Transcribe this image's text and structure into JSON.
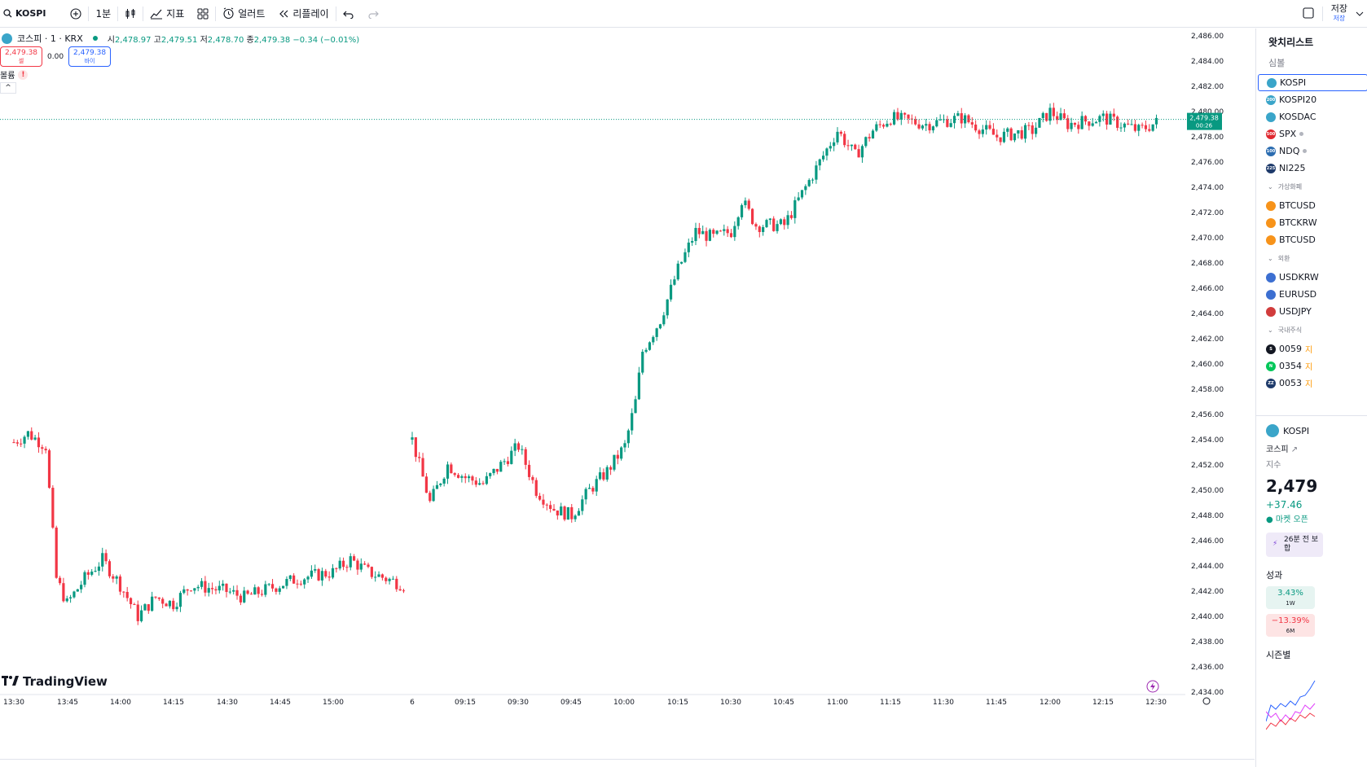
{
  "toolbar": {
    "symbol": "KOSPI",
    "interval": "1분",
    "indicators_label": "지표",
    "alert_label": "얼러트",
    "replay_label": "리플레이",
    "save_label": "저장",
    "save_sub": "저장"
  },
  "legend": {
    "title": "코스피 · 1 · KRX",
    "o_label": "시",
    "o": "2,478.97",
    "h_label": "고",
    "h": "2,479.51",
    "l_label": "저",
    "l": "2,478.70",
    "c_label": "종",
    "c": "2,479.38",
    "change": "−0.34 (−0.01%)"
  },
  "trade": {
    "sell_price": "2,479.38",
    "sell_label": "셀",
    "spread": "0.00",
    "buy_price": "2,479.38",
    "buy_label": "바이"
  },
  "status": {
    "label": "볼륨",
    "warn": "!"
  },
  "collapse": "^",
  "logo": "TradingView",
  "price_axis": {
    "ticks": [
      "2,486.00",
      "2,484.00",
      "2,482.00",
      "2,480.00",
      "2,478.00",
      "2,476.00",
      "2,474.00",
      "2,472.00",
      "2,470.00",
      "2,468.00",
      "2,466.00",
      "2,464.00",
      "2,462.00",
      "2,460.00",
      "2,458.00",
      "2,456.00",
      "2,454.00",
      "2,452.00",
      "2,450.00",
      "2,448.00",
      "2,446.00",
      "2,444.00",
      "2,442.00",
      "2,440.00",
      "2,438.00",
      "2,436.00",
      "2,434.00"
    ],
    "last_price": "2,479.38",
    "countdown": "00:26"
  },
  "time_axis": {
    "ticks": [
      "13:30",
      "13:45",
      "14:00",
      "14:15",
      "14:30",
      "14:45",
      "15:00",
      "6",
      "09:15",
      "09:30",
      "09:45",
      "10:00",
      "10:15",
      "10:30",
      "10:45",
      "11:00",
      "11:15",
      "11:30",
      "11:45",
      "12:00",
      "12:15",
      "12:30"
    ]
  },
  "chart_data": {
    "type": "candlestick",
    "ylim": [
      2434,
      2487
    ],
    "colors": {
      "up": "#089981",
      "down": "#f23645",
      "last_price_line": "#089981"
    },
    "segments": [
      {
        "session": "previous",
        "from": "13:30",
        "to": "15:30",
        "price_path": [
          [
            2453.8,
            "13:30"
          ],
          [
            2454.5,
            "13:34"
          ],
          [
            2453.5,
            "13:39"
          ],
          [
            2450.0,
            "13:40"
          ],
          [
            2443.0,
            "13:42"
          ],
          [
            2441.0,
            "13:45"
          ],
          [
            2443.0,
            "13:50"
          ],
          [
            2444.5,
            "13:55"
          ],
          [
            2442.5,
            "14:00"
          ],
          [
            2440.0,
            "14:05"
          ],
          [
            2441.5,
            "14:10"
          ],
          [
            2441.0,
            "14:15"
          ],
          [
            2442.5,
            "14:20"
          ],
          [
            2442.0,
            "14:30"
          ],
          [
            2441.5,
            "14:35"
          ],
          [
            2442.0,
            "14:40"
          ],
          [
            2443.0,
            "14:50"
          ],
          [
            2443.5,
            "15:00"
          ],
          [
            2444.5,
            "15:05"
          ],
          [
            2443.5,
            "15:10"
          ],
          [
            2442.5,
            "15:20"
          ]
        ]
      },
      {
        "session": "current",
        "from": "09:00",
        "to": "12:32",
        "price_path": [
          [
            2454.0,
            "09:00"
          ],
          [
            2452.0,
            "09:02"
          ],
          [
            2449.0,
            "09:05"
          ],
          [
            2452.0,
            "09:10"
          ],
          [
            2451.0,
            "09:15"
          ],
          [
            2450.5,
            "09:20"
          ],
          [
            2452.0,
            "09:25"
          ],
          [
            2453.5,
            "09:30"
          ],
          [
            2450.0,
            "09:35"
          ],
          [
            2448.5,
            "09:40"
          ],
          [
            2448.0,
            "09:45"
          ],
          [
            2450.0,
            "09:50"
          ],
          [
            2451.5,
            "09:55"
          ],
          [
            2453.5,
            "10:00"
          ],
          [
            2457.0,
            "10:03"
          ],
          [
            2461.0,
            "10:05"
          ],
          [
            2463.5,
            "10:10"
          ],
          [
            2467.5,
            "10:15"
          ],
          [
            2470.5,
            "10:20"
          ],
          [
            2470.0,
            "10:25"
          ],
          [
            2470.5,
            "10:30"
          ],
          [
            2473.0,
            "10:33"
          ],
          [
            2471.0,
            "10:37"
          ],
          [
            2471.0,
            "10:45"
          ],
          [
            2473.5,
            "10:50"
          ],
          [
            2476.0,
            "10:55"
          ],
          [
            2478.5,
            "11:00"
          ],
          [
            2476.5,
            "11:05"
          ],
          [
            2478.5,
            "11:10"
          ],
          [
            2479.5,
            "11:15"
          ],
          [
            2479.0,
            "11:25"
          ],
          [
            2479.5,
            "11:35"
          ],
          [
            2478.0,
            "11:45"
          ],
          [
            2478.5,
            "11:55"
          ],
          [
            2480.0,
            "12:00"
          ],
          [
            2479.0,
            "12:05"
          ],
          [
            2479.5,
            "12:15"
          ],
          [
            2478.5,
            "12:25"
          ],
          [
            2479.38,
            "12:32"
          ]
        ]
      }
    ],
    "last_close": 2479.38
  },
  "watchlist": {
    "title": "왓치리스트",
    "col": "심볼",
    "items": [
      {
        "kind": "row",
        "label": "KOSPI",
        "color": "#3aa5c9",
        "active": true
      },
      {
        "kind": "row",
        "label": "KOSPI20",
        "color": "#3aa5c9",
        "badge": "200"
      },
      {
        "kind": "row",
        "label": "KOSDAC",
        "color": "#3aa5c9"
      },
      {
        "kind": "row",
        "label": "SPX",
        "color": "#e0282f",
        "dot": true,
        "badge": "500"
      },
      {
        "kind": "row",
        "label": "NDQ",
        "color": "#2b6cb0",
        "dot": true,
        "badge": "100"
      },
      {
        "kind": "row",
        "label": "NI225",
        "color": "#1e3a6a",
        "badge": "225"
      },
      {
        "kind": "section",
        "label": "가상화폐"
      },
      {
        "kind": "row",
        "label": "BTCUSD",
        "color": "#f7931a"
      },
      {
        "kind": "row",
        "label": "BTCKRW",
        "color": "#f7931a"
      },
      {
        "kind": "row",
        "label": "BTCUSD",
        "color": "#f7931a"
      },
      {
        "kind": "section",
        "label": "외환"
      },
      {
        "kind": "row",
        "label": "USDKRW",
        "color": "#3c6fd1"
      },
      {
        "kind": "row",
        "label": "EURUSD",
        "color": "#3c6fd1"
      },
      {
        "kind": "row",
        "label": "USDJPY",
        "color": "#d13c3c"
      },
      {
        "kind": "section",
        "label": "국내주식"
      },
      {
        "kind": "row",
        "label": "0059",
        "color": "#131722",
        "extra": "지",
        "badge": "S"
      },
      {
        "kind": "row",
        "label": "0354",
        "color": "#03c75a",
        "extra": "지",
        "badge": "N"
      },
      {
        "kind": "row",
        "label": "0053",
        "color": "#1e3a6a",
        "extra": "지",
        "badge": "ZZ"
      }
    ]
  },
  "details": {
    "symbol": "KOSPI",
    "name": "코스피",
    "type": "지수",
    "price": "2,479",
    "change": "+37.46",
    "market": "● 마켓 오픈",
    "news": "26분 전 보합",
    "perf_title": "성과",
    "perf": [
      {
        "value": "3.43%",
        "period": "1W",
        "dir": "up"
      },
      {
        "value": "−13.39%",
        "period": "6M",
        "dir": "down"
      }
    ],
    "season_title": "시즌별"
  }
}
